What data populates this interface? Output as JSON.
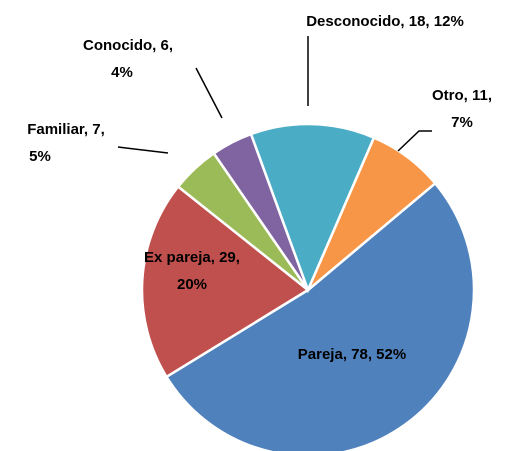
{
  "chart_data": {
    "type": "pie",
    "categories": [
      "Pareja",
      "Ex pareja",
      "Familiar",
      "Conocido",
      "Desconocido",
      "Otro"
    ],
    "values": [
      78,
      29,
      7,
      6,
      18,
      11
    ],
    "value_labels": [
      [
        "Pareja, 78, 52%"
      ],
      [
        "Ex pareja, 29,",
        "20%"
      ],
      [
        "Familiar, 7,",
        "5%"
      ],
      [
        "Conocido, 6,",
        "4%"
      ],
      [
        "Desconocido, 18, 12%"
      ],
      [
        "Otro, 11,",
        "7%"
      ]
    ],
    "colors": [
      "#4f81bd",
      "#c0504d",
      "#9bbb59",
      "#8064a2",
      "#4bacc6",
      "#f79646"
    ]
  }
}
